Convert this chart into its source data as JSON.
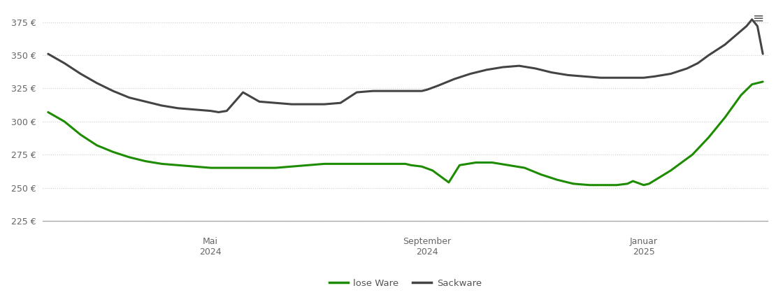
{
  "background_color": "#ffffff",
  "grid_color": "#cccccc",
  "grid_style": "dotted",
  "ylim": [
    218,
    385
  ],
  "yticks": [
    225,
    250,
    275,
    300,
    325,
    350,
    375
  ],
  "ytick_labels": [
    "225 €",
    "250 €",
    "275 €",
    "300 €",
    "325 €",
    "350 €",
    "375 €"
  ],
  "lose_ware_color": "#1e8c00",
  "sackware_color": "#444444",
  "line_width": 2.2,
  "legend_labels": [
    "lose Ware",
    "Sackware"
  ],
  "xtick_labels": [
    "Mai\n2024",
    "September\n2024",
    "Januar\n2025"
  ],
  "lose_ware_x": [
    0.0,
    0.3,
    0.6,
    0.9,
    1.2,
    1.5,
    1.8,
    2.1,
    2.4,
    2.7,
    3.0,
    3.3,
    3.6,
    3.9,
    4.2,
    4.5,
    4.8,
    5.1,
    5.4,
    5.7,
    6.0,
    6.3,
    6.6,
    6.7,
    6.9,
    7.1,
    7.2,
    7.4,
    7.6,
    7.9,
    8.2,
    8.5,
    8.8,
    9.1,
    9.4,
    9.7,
    10.0,
    10.3,
    10.5,
    10.7,
    10.8,
    11.0,
    11.1,
    11.3,
    11.5,
    11.7,
    11.9,
    12.2,
    12.5,
    12.8,
    13.0,
    13.2
  ],
  "lose_ware_y": [
    307,
    300,
    290,
    282,
    277,
    273,
    270,
    268,
    267,
    266,
    265,
    265,
    265,
    265,
    265,
    266,
    267,
    268,
    268,
    268,
    268,
    268,
    268,
    267,
    266,
    263,
    260,
    254,
    267,
    269,
    269,
    267,
    265,
    260,
    256,
    253,
    252,
    252,
    252,
    253,
    255,
    252,
    253,
    258,
    263,
    269,
    275,
    288,
    303,
    320,
    328,
    330
  ],
  "sackware_x": [
    0.0,
    0.3,
    0.6,
    0.9,
    1.2,
    1.5,
    1.8,
    2.1,
    2.4,
    2.7,
    3.0,
    3.15,
    3.3,
    3.6,
    3.9,
    4.2,
    4.5,
    4.8,
    5.1,
    5.4,
    5.7,
    6.0,
    6.3,
    6.6,
    6.9,
    7.0,
    7.2,
    7.5,
    7.8,
    8.1,
    8.4,
    8.7,
    9.0,
    9.3,
    9.6,
    9.9,
    10.2,
    10.5,
    10.8,
    11.0,
    11.2,
    11.5,
    11.8,
    12.0,
    12.2,
    12.5,
    12.7,
    12.9,
    13.0,
    13.1,
    13.2
  ],
  "sackware_y": [
    351,
    344,
    336,
    329,
    323,
    318,
    315,
    312,
    310,
    309,
    308,
    307,
    308,
    322,
    315,
    314,
    313,
    313,
    313,
    314,
    322,
    323,
    323,
    323,
    323,
    324,
    327,
    332,
    336,
    339,
    341,
    342,
    340,
    337,
    335,
    334,
    333,
    333,
    333,
    333,
    334,
    336,
    340,
    344,
    350,
    358,
    365,
    372,
    377,
    372,
    351
  ],
  "xtick_x_positions": [
    3.0,
    7.0,
    11.0
  ]
}
